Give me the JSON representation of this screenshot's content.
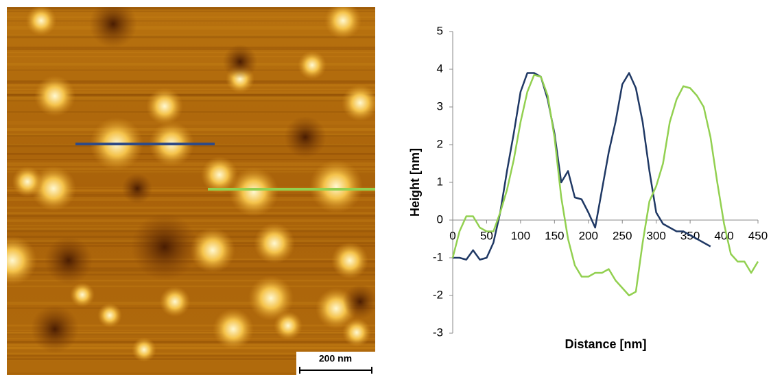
{
  "image": {
    "scale_label": "200 nm"
  },
  "chart_data": {
    "type": "line",
    "x_label": "Distance [nm]",
    "y_label": "Height [nm]",
    "x": [
      0,
      10,
      20,
      30,
      40,
      50,
      60,
      70,
      80,
      90,
      100,
      110,
      120,
      130,
      140,
      150,
      160,
      170,
      180,
      190,
      200,
      210,
      220,
      230,
      240,
      250,
      260,
      270,
      280,
      290,
      300,
      310,
      320,
      330,
      340,
      350,
      360,
      370,
      380,
      390,
      400,
      410,
      420,
      430,
      440,
      450
    ],
    "series": [
      {
        "color": "#1f3864",
        "values": [
          -1.0,
          -1.0,
          -1.05,
          -0.8,
          -1.05,
          -1.0,
          -0.6,
          0.2,
          1.3,
          2.3,
          3.4,
          3.9,
          3.9,
          3.8,
          3.2,
          2.3,
          1.0,
          1.3,
          0.6,
          0.55,
          0.2,
          -0.2,
          0.8,
          1.8,
          2.6,
          3.6,
          3.9,
          3.5,
          2.6,
          1.3,
          0.2,
          -0.1,
          -0.2,
          -0.3,
          -0.3,
          -0.4,
          -0.5,
          -0.6,
          -0.7,
          null,
          null,
          null,
          null,
          null,
          null,
          null
        ]
      },
      {
        "color": "#92d050",
        "values": [
          -1.0,
          -0.3,
          0.1,
          0.1,
          -0.2,
          -0.3,
          -0.3,
          0.2,
          0.8,
          1.6,
          2.6,
          3.4,
          3.85,
          3.8,
          3.3,
          2.2,
          0.6,
          -0.5,
          -1.2,
          -1.5,
          -1.5,
          -1.4,
          -1.4,
          -1.3,
          -1.6,
          -1.8,
          -2.0,
          -1.9,
          -0.6,
          0.5,
          0.9,
          1.5,
          2.6,
          3.2,
          3.55,
          3.5,
          3.3,
          3.0,
          2.2,
          1.0,
          -0.1,
          -0.9,
          -1.1,
          -1.1,
          -1.4,
          -1.1
        ]
      }
    ],
    "xlim": [
      0,
      450
    ],
    "xticks": [
      0,
      50,
      100,
      150,
      200,
      250,
      300,
      350,
      400,
      450
    ],
    "ylim": [
      -3,
      5
    ],
    "yticks": [
      -3,
      -2,
      -1,
      0,
      1,
      2,
      3,
      4,
      5
    ]
  }
}
